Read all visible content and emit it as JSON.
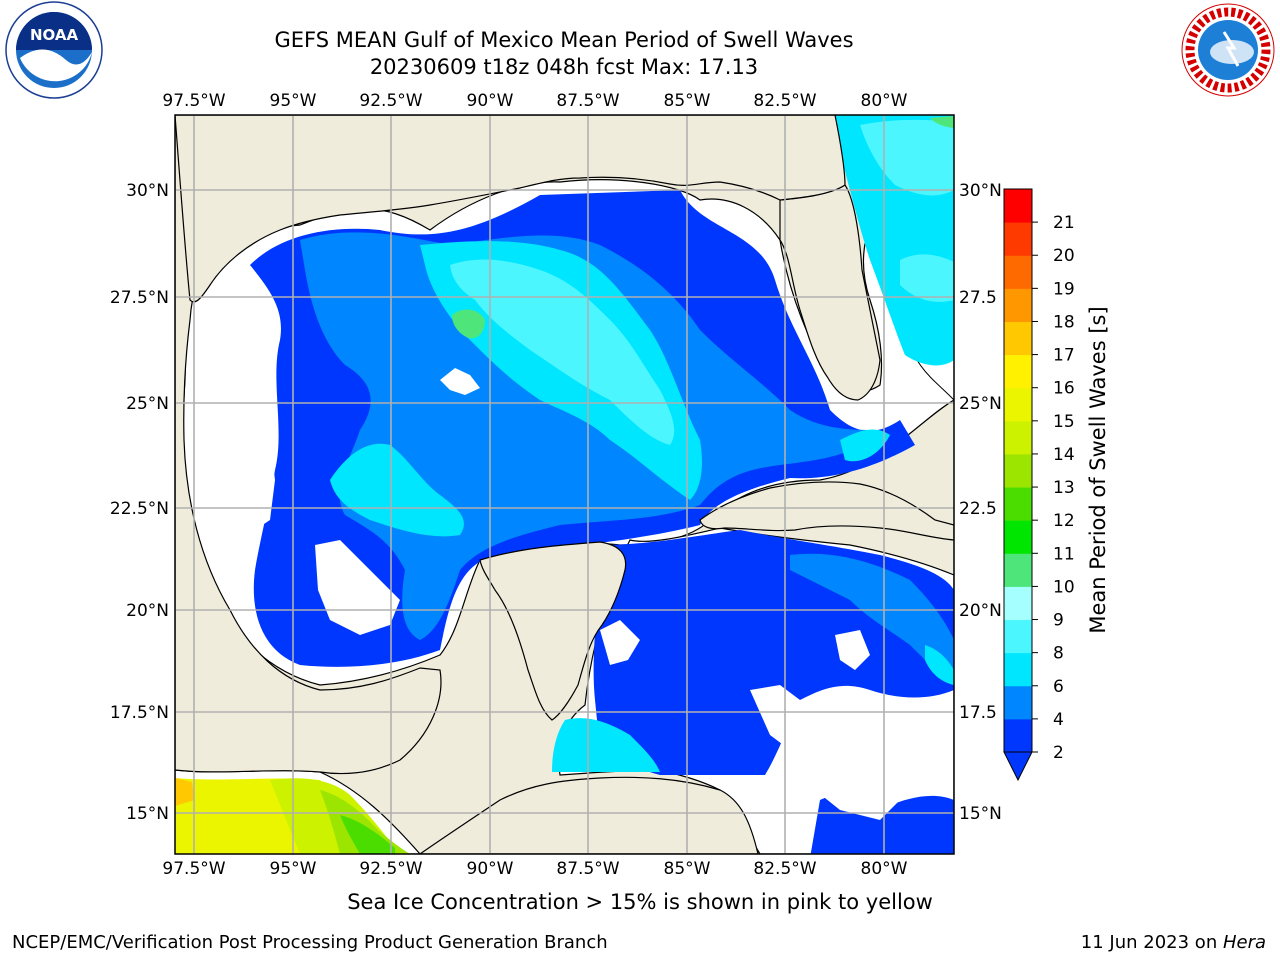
{
  "header": {
    "title_line1": "GEFS MEAN Gulf of Mexico Mean Period of Swell Waves",
    "title_line2": "20230609 t18z 048h fcst   Max: 17.13"
  },
  "logos": {
    "left": "noaa-logo",
    "right": "national-weather-service-logo",
    "left_text": "NOAA",
    "right_text": "NATIONAL WEATHER SERVICE"
  },
  "map": {
    "projection": "lat-lon",
    "lon_labels": [
      "97.5°W",
      "95°W",
      "92.5°W",
      "90°W",
      "87.5°W",
      "85°W",
      "82.5°W",
      "80°W"
    ],
    "lat_labels_left": [
      "30°N",
      "27.5°N",
      "25°N",
      "22.5°N",
      "20°N",
      "17.5°N",
      "15°N"
    ],
    "lat_labels_right": [
      "30°N",
      "27.5",
      "25°N",
      "22.5",
      "20°N",
      "17.5",
      "15°N"
    ],
    "colors": {
      "land": "#efecdc",
      "gridline": "#b0b0b0",
      "nodata": "#ffffff"
    }
  },
  "colorbar": {
    "label": "Mean Period of Swell Waves [s]",
    "ticks": [
      "2",
      "4",
      "6",
      "8",
      "9",
      "10",
      "11",
      "12",
      "13",
      "14",
      "15",
      "16",
      "17",
      "18",
      "19",
      "20",
      "21"
    ],
    "colors": [
      "#0037ff",
      "#0087ff",
      "#00e6ff",
      "#4cf6ff",
      "#a5ffff",
      "#4ee67a",
      "#00e600",
      "#4cdd00",
      "#9ce500",
      "#ccf200",
      "#ecf500",
      "#fff100",
      "#ffc800",
      "#ff9700",
      "#ff6a00",
      "#ff3a00",
      "#ff0000"
    ]
  },
  "notes": {
    "ice": "Sea Ice Concentration > 15% is shown in pink to yellow"
  },
  "footer": {
    "left": "NCEP/EMC/Verification Post Processing Product Generation Branch",
    "date": "11 Jun 2023 on ",
    "host": "Hera"
  }
}
